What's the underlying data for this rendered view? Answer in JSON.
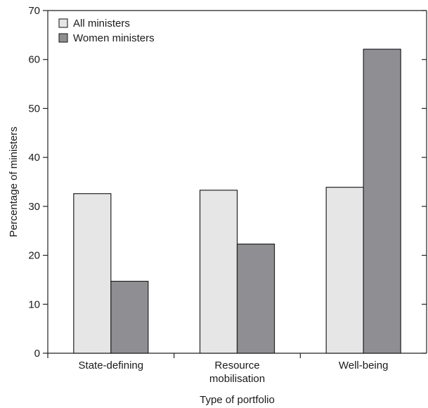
{
  "chart_data": {
    "type": "bar",
    "categories": [
      "State-defining",
      "Resource mobilisation",
      "Well-being"
    ],
    "category_label_lines": [
      [
        "State-defining"
      ],
      [
        "Resource",
        "mobilisation"
      ],
      [
        "Well-being"
      ]
    ],
    "series": [
      {
        "name": "All ministers",
        "values": [
          32.6,
          33.3,
          33.9
        ],
        "color": "#e6e6e6"
      },
      {
        "name": "Women ministers",
        "values": [
          14.7,
          22.3,
          62.1
        ],
        "color": "#8f8f93"
      }
    ],
    "xlabel": "Type of portfolio",
    "ylabel": "Percentage of ministers",
    "ylim": [
      0,
      70
    ],
    "yticks": [
      0,
      10,
      20,
      30,
      40,
      50,
      60,
      70
    ],
    "grid": false,
    "legend_position": "top-left"
  }
}
